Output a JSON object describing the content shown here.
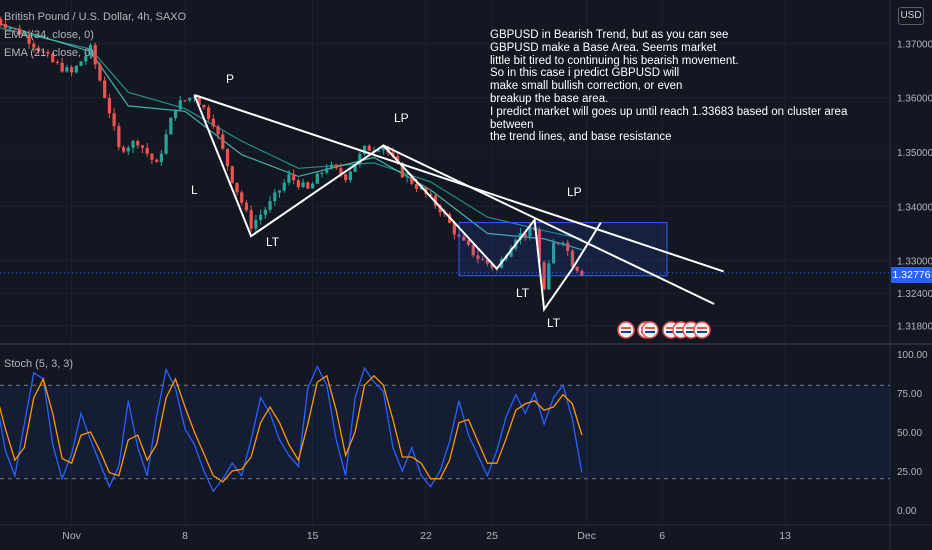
{
  "header": {
    "symbol_line": "British Pound / U.S. Dollar, 4h, SAXO",
    "ema_34": "EMA (34, close, 0)",
    "ema_21": "EMA (21, close, 0)",
    "stoch_label": "Stoch (5, 3, 3)",
    "currency_button": "USD",
    "last_price": "1.32776"
  },
  "annotation_text": "GBPUSD in Bearish Trend, but as you can see\nGBPUSD make a Base Area. Seems market\nlittle bit tired to continuing his bearish movement.\nSo in this case i predict GBPUSD will\nmake small bullish correction, or even\nbreakup the base area.\nI predict market will goes up until reach 1.33683 based on cluster area between\nthe trend lines, and base resistance",
  "pattern_labels": [
    "P",
    "L",
    "LT",
    "LP",
    "LT",
    "LP",
    "LT"
  ],
  "colors": {
    "background": "#131722",
    "up": "#26a69a",
    "down": "#ef5350",
    "ema": "#26a69a",
    "stoch_k": "#2962ff",
    "stoch_d": "#ff9800",
    "box": "#2962ff",
    "drawing": "#ffffff"
  },
  "chart_data": {
    "type": "candlestick",
    "title": "British Pound / U.S. Dollar, 4h, SAXO",
    "x_tick_labels": [
      "Nov",
      "8",
      "15",
      "22",
      "25",
      "Dec",
      "6",
      "13"
    ],
    "price_ticks": [
      "1.37000",
      "1.36000",
      "1.35000",
      "1.34000",
      "1.33000",
      "1.32400",
      "1.31800"
    ],
    "price_range": [
      1.315,
      1.378
    ],
    "last_price": 1.32776,
    "target_price": 1.33683,
    "price_path": [
      {
        "d": 0,
        "p": 1.3745
      },
      {
        "d": 3,
        "p": 1.3715
      },
      {
        "d": 6,
        "p": 1.3665
      },
      {
        "d": 8,
        "p": 1.3645
      },
      {
        "d": 10,
        "p": 1.369
      },
      {
        "d": 12,
        "p": 1.3575
      },
      {
        "d": 13,
        "p": 1.3505
      },
      {
        "d": 15,
        "p": 1.352
      },
      {
        "d": 17,
        "p": 1.3475
      },
      {
        "d": 19,
        "p": 1.3585
      },
      {
        "d": 21,
        "p": 1.3605
      },
      {
        "d": 23,
        "p": 1.3555
      },
      {
        "d": 25,
        "p": 1.345
      },
      {
        "d": 27,
        "p": 1.3365
      },
      {
        "d": 29,
        "p": 1.3405
      },
      {
        "d": 31,
        "p": 1.3455
      },
      {
        "d": 33,
        "p": 1.343
      },
      {
        "d": 35,
        "p": 1.3475
      },
      {
        "d": 37,
        "p": 1.3455
      },
      {
        "d": 39,
        "p": 1.3505
      },
      {
        "d": 41,
        "p": 1.3512
      },
      {
        "d": 43,
        "p": 1.346
      },
      {
        "d": 45,
        "p": 1.343
      },
      {
        "d": 47,
        "p": 1.3395
      },
      {
        "d": 49,
        "p": 1.334
      },
      {
        "d": 51,
        "p": 1.3305
      },
      {
        "d": 53,
        "p": 1.3285
      },
      {
        "d": 55,
        "p": 1.3345
      },
      {
        "d": 57,
        "p": 1.3355
      },
      {
        "d": 58,
        "p": 1.3245
      },
      {
        "d": 59,
        "p": 1.333
      },
      {
        "d": 60,
        "p": 1.334
      },
      {
        "d": 61,
        "p": 1.3295
      },
      {
        "d": 62,
        "p": 1.3278
      }
    ],
    "ema_34_path": [
      {
        "d": 0,
        "p": 1.373
      },
      {
        "d": 10,
        "p": 1.369
      },
      {
        "d": 14,
        "p": 1.361
      },
      {
        "d": 20,
        "p": 1.358
      },
      {
        "d": 26,
        "p": 1.352
      },
      {
        "d": 32,
        "p": 1.347
      },
      {
        "d": 40,
        "p": 1.348
      },
      {
        "d": 46,
        "p": 1.3445
      },
      {
        "d": 52,
        "p": 1.338
      },
      {
        "d": 58,
        "p": 1.3355
      },
      {
        "d": 62,
        "p": 1.334
      }
    ],
    "ema_21_path": [
      {
        "d": 0,
        "p": 1.3738
      },
      {
        "d": 10,
        "p": 1.3685
      },
      {
        "d": 14,
        "p": 1.3585
      },
      {
        "d": 20,
        "p": 1.3575
      },
      {
        "d": 26,
        "p": 1.3495
      },
      {
        "d": 32,
        "p": 1.3455
      },
      {
        "d": 40,
        "p": 1.349
      },
      {
        "d": 46,
        "p": 1.343
      },
      {
        "d": 52,
        "p": 1.335
      },
      {
        "d": 58,
        "p": 1.334
      },
      {
        "d": 62,
        "p": 1.332
      }
    ],
    "drawings": {
      "trend_line_1": [
        {
          "d": 21,
          "p": 1.3605
        },
        {
          "d": 77,
          "p": 1.328
        }
      ],
      "trend_line_2": [
        {
          "d": 41,
          "p": 1.3512
        },
        {
          "d": 76,
          "p": 1.322
        }
      ],
      "base_box": {
        "d_start": 49,
        "d_end": 71,
        "p_low": 1.3272,
        "p_high": 1.337
      },
      "pattern_path": [
        {
          "d": 21,
          "p": 1.3605
        },
        {
          "d": 27,
          "p": 1.3345
        },
        {
          "d": 41,
          "p": 1.3512
        },
        {
          "d": 53,
          "p": 1.3285
        },
        {
          "d": 57,
          "p": 1.3375
        },
        {
          "d": 58,
          "p": 1.321
        },
        {
          "d": 61,
          "p": 1.3285
        },
        {
          "d": 64,
          "p": 1.337
        }
      ]
    },
    "stochastic": {
      "name": "Stoch (5, 3, 3)",
      "range": [
        0,
        100
      ],
      "ticks": [
        "100.00",
        "75.00",
        "50.00",
        "25.00",
        "0.00"
      ],
      "band": [
        20,
        80
      ],
      "k_path": [
        {
          "d": 0,
          "v": 72
        },
        {
          "d": 1,
          "v": 38
        },
        {
          "d": 2,
          "v": 22
        },
        {
          "d": 3,
          "v": 55
        },
        {
          "d": 4,
          "v": 88
        },
        {
          "d": 5,
          "v": 84
        },
        {
          "d": 6,
          "v": 42
        },
        {
          "d": 7,
          "v": 20
        },
        {
          "d": 8,
          "v": 36
        },
        {
          "d": 9,
          "v": 62
        },
        {
          "d": 10,
          "v": 45
        },
        {
          "d": 11,
          "v": 30
        },
        {
          "d": 12,
          "v": 15
        },
        {
          "d": 13,
          "v": 28
        },
        {
          "d": 14,
          "v": 70
        },
        {
          "d": 15,
          "v": 40
        },
        {
          "d": 16,
          "v": 22
        },
        {
          "d": 17,
          "v": 60
        },
        {
          "d": 18,
          "v": 90
        },
        {
          "d": 19,
          "v": 78
        },
        {
          "d": 20,
          "v": 52
        },
        {
          "d": 21,
          "v": 42
        },
        {
          "d": 22,
          "v": 25
        },
        {
          "d": 23,
          "v": 12
        },
        {
          "d": 24,
          "v": 20
        },
        {
          "d": 25,
          "v": 30
        },
        {
          "d": 26,
          "v": 22
        },
        {
          "d": 27,
          "v": 45
        },
        {
          "d": 28,
          "v": 72
        },
        {
          "d": 29,
          "v": 62
        },
        {
          "d": 30,
          "v": 45
        },
        {
          "d": 31,
          "v": 35
        },
        {
          "d": 32,
          "v": 28
        },
        {
          "d": 33,
          "v": 78
        },
        {
          "d": 34,
          "v": 92
        },
        {
          "d": 35,
          "v": 80
        },
        {
          "d": 36,
          "v": 45
        },
        {
          "d": 37,
          "v": 22
        },
        {
          "d": 38,
          "v": 72
        },
        {
          "d": 39,
          "v": 91
        },
        {
          "d": 40,
          "v": 82
        },
        {
          "d": 41,
          "v": 76
        },
        {
          "d": 42,
          "v": 40
        },
        {
          "d": 43,
          "v": 25
        },
        {
          "d": 44,
          "v": 40
        },
        {
          "d": 45,
          "v": 22
        },
        {
          "d": 46,
          "v": 15
        },
        {
          "d": 47,
          "v": 25
        },
        {
          "d": 48,
          "v": 44
        },
        {
          "d": 49,
          "v": 70
        },
        {
          "d": 50,
          "v": 48
        },
        {
          "d": 51,
          "v": 35
        },
        {
          "d": 52,
          "v": 22
        },
        {
          "d": 53,
          "v": 38
        },
        {
          "d": 54,
          "v": 60
        },
        {
          "d": 55,
          "v": 74
        },
        {
          "d": 56,
          "v": 62
        },
        {
          "d": 57,
          "v": 75
        },
        {
          "d": 58,
          "v": 55
        },
        {
          "d": 59,
          "v": 72
        },
        {
          "d": 60,
          "v": 80
        },
        {
          "d": 61,
          "v": 58
        },
        {
          "d": 62,
          "v": 24
        }
      ],
      "d_path": [
        {
          "d": 0,
          "v": 75
        },
        {
          "d": 1,
          "v": 52
        },
        {
          "d": 2,
          "v": 32
        },
        {
          "d": 3,
          "v": 40
        },
        {
          "d": 4,
          "v": 72
        },
        {
          "d": 5,
          "v": 84
        },
        {
          "d": 6,
          "v": 62
        },
        {
          "d": 7,
          "v": 33
        },
        {
          "d": 8,
          "v": 30
        },
        {
          "d": 9,
          "v": 48
        },
        {
          "d": 10,
          "v": 50
        },
        {
          "d": 11,
          "v": 38
        },
        {
          "d": 12,
          "v": 24
        },
        {
          "d": 13,
          "v": 22
        },
        {
          "d": 14,
          "v": 45
        },
        {
          "d": 15,
          "v": 48
        },
        {
          "d": 16,
          "v": 32
        },
        {
          "d": 17,
          "v": 42
        },
        {
          "d": 18,
          "v": 72
        },
        {
          "d": 19,
          "v": 84
        },
        {
          "d": 20,
          "v": 66
        },
        {
          "d": 21,
          "v": 50
        },
        {
          "d": 22,
          "v": 36
        },
        {
          "d": 23,
          "v": 22
        },
        {
          "d": 24,
          "v": 18
        },
        {
          "d": 25,
          "v": 25
        },
        {
          "d": 26,
          "v": 26
        },
        {
          "d": 27,
          "v": 34
        },
        {
          "d": 28,
          "v": 56
        },
        {
          "d": 29,
          "v": 66
        },
        {
          "d": 30,
          "v": 56
        },
        {
          "d": 31,
          "v": 42
        },
        {
          "d": 32,
          "v": 32
        },
        {
          "d": 33,
          "v": 55
        },
        {
          "d": 34,
          "v": 82
        },
        {
          "d": 35,
          "v": 86
        },
        {
          "d": 36,
          "v": 64
        },
        {
          "d": 37,
          "v": 35
        },
        {
          "d": 38,
          "v": 50
        },
        {
          "d": 39,
          "v": 80
        },
        {
          "d": 40,
          "v": 86
        },
        {
          "d": 41,
          "v": 80
        },
        {
          "d": 42,
          "v": 58
        },
        {
          "d": 43,
          "v": 34
        },
        {
          "d": 44,
          "v": 34
        },
        {
          "d": 45,
          "v": 30
        },
        {
          "d": 46,
          "v": 20
        },
        {
          "d": 47,
          "v": 20
        },
        {
          "d": 48,
          "v": 32
        },
        {
          "d": 49,
          "v": 56
        },
        {
          "d": 50,
          "v": 58
        },
        {
          "d": 51,
          "v": 44
        },
        {
          "d": 52,
          "v": 30
        },
        {
          "d": 53,
          "v": 30
        },
        {
          "d": 54,
          "v": 46
        },
        {
          "d": 55,
          "v": 64
        },
        {
          "d": 56,
          "v": 68
        },
        {
          "d": 57,
          "v": 70
        },
        {
          "d": 58,
          "v": 64
        },
        {
          "d": 59,
          "v": 66
        },
        {
          "d": 60,
          "v": 74
        },
        {
          "d": 61,
          "v": 68
        },
        {
          "d": 62,
          "v": 48
        }
      ]
    }
  }
}
